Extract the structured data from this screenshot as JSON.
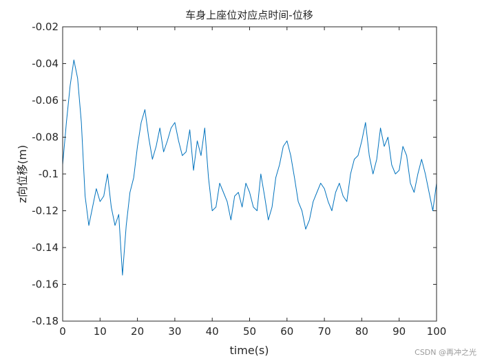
{
  "chart_data": {
    "type": "line",
    "title": "车身上座位对应点时间-位移",
    "xlabel": "time(s)",
    "ylabel": "z向位移(m)",
    "xlim": [
      0,
      100
    ],
    "ylim": [
      -0.18,
      -0.02
    ],
    "x_ticks": [
      0,
      10,
      20,
      30,
      40,
      50,
      60,
      70,
      80,
      90,
      100
    ],
    "y_ticks": [
      -0.02,
      -0.04,
      -0.06,
      -0.08,
      -0.1,
      -0.12,
      -0.14,
      -0.16,
      -0.18
    ],
    "x_tick_labels": [
      "0",
      "10",
      "20",
      "30",
      "40",
      "50",
      "60",
      "70",
      "80",
      "90",
      "100"
    ],
    "y_tick_labels": [
      "-0.02",
      "-0.04",
      "-0.06",
      "-0.08",
      "-0.1",
      "-0.12",
      "-0.14",
      "-0.16",
      "-0.18"
    ],
    "grid": false,
    "series": [
      {
        "color": "#0072BD",
        "x": [
          0,
          1,
          2,
          3,
          4,
          5,
          6,
          7,
          8,
          9,
          10,
          11,
          12,
          13,
          14,
          15,
          16,
          17,
          18,
          19,
          20,
          21,
          22,
          23,
          24,
          25,
          26,
          27,
          28,
          29,
          30,
          31,
          32,
          33,
          34,
          35,
          36,
          37,
          38,
          39,
          40,
          41,
          42,
          43,
          44,
          45,
          46,
          47,
          48,
          49,
          50,
          51,
          52,
          53,
          54,
          55,
          56,
          57,
          58,
          59,
          60,
          61,
          62,
          63,
          64,
          65,
          66,
          67,
          68,
          69,
          70,
          71,
          72,
          73,
          74,
          75,
          76,
          77,
          78,
          79,
          80,
          81,
          82,
          83,
          84,
          85,
          86,
          87,
          88,
          89,
          90,
          91,
          92,
          93,
          94,
          95,
          96,
          97,
          98,
          99,
          100
        ],
        "y": [
          -0.095,
          -0.072,
          -0.052,
          -0.038,
          -0.048,
          -0.072,
          -0.112,
          -0.128,
          -0.118,
          -0.108,
          -0.115,
          -0.112,
          -0.1,
          -0.118,
          -0.128,
          -0.122,
          -0.155,
          -0.128,
          -0.11,
          -0.102,
          -0.085,
          -0.072,
          -0.065,
          -0.08,
          -0.092,
          -0.085,
          -0.075,
          -0.088,
          -0.082,
          -0.075,
          -0.072,
          -0.082,
          -0.09,
          -0.088,
          -0.076,
          -0.098,
          -0.082,
          -0.09,
          -0.075,
          -0.102,
          -0.12,
          -0.118,
          -0.105,
          -0.11,
          -0.115,
          -0.125,
          -0.112,
          -0.11,
          -0.118,
          -0.105,
          -0.11,
          -0.118,
          -0.12,
          -0.1,
          -0.112,
          -0.125,
          -0.118,
          -0.102,
          -0.095,
          -0.085,
          -0.082,
          -0.09,
          -0.102,
          -0.115,
          -0.12,
          -0.13,
          -0.125,
          -0.115,
          -0.11,
          -0.105,
          -0.108,
          -0.115,
          -0.12,
          -0.11,
          -0.105,
          -0.112,
          -0.115,
          -0.1,
          -0.092,
          -0.09,
          -0.082,
          -0.072,
          -0.09,
          -0.1,
          -0.092,
          -0.075,
          -0.085,
          -0.08,
          -0.095,
          -0.1,
          -0.098,
          -0.085,
          -0.09,
          -0.105,
          -0.11,
          -0.1,
          -0.092,
          -0.1,
          -0.11,
          -0.12,
          -0.105
        ]
      }
    ]
  },
  "watermark": "CSDN @再冲之光"
}
